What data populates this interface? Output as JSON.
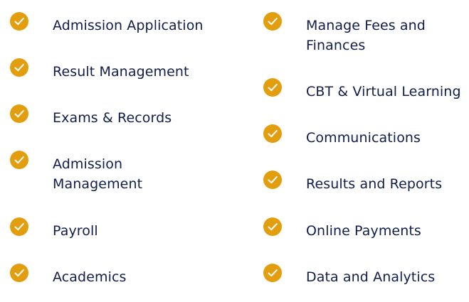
{
  "accent_color": "#e39e0f",
  "text_color": "#111d4a",
  "icon": "checkmark-circle-icon",
  "left_column": [
    {
      "label_line1": "Admission Application",
      "label_line2": ""
    },
    {
      "label_line1": "Result Management",
      "label_line2": ""
    },
    {
      "label_line1": "Exams & Records",
      "label_line2": ""
    },
    {
      "label_line1": "Admission",
      "label_line2": "Management"
    },
    {
      "label_line1": "Payroll",
      "label_line2": ""
    },
    {
      "label_line1": "Academics",
      "label_line2": ""
    }
  ],
  "right_column": [
    {
      "label_line1": "Manage Fees and",
      "label_line2": "Finances"
    },
    {
      "label_line1": "CBT & Virtual Learning",
      "label_line2": ""
    },
    {
      "label_line1": "Communications",
      "label_line2": ""
    },
    {
      "label_line1": "Results and Reports",
      "label_line2": ""
    },
    {
      "label_line1": "Online Payments",
      "label_line2": ""
    },
    {
      "label_line1": "Data and Analytics",
      "label_line2": ""
    }
  ]
}
